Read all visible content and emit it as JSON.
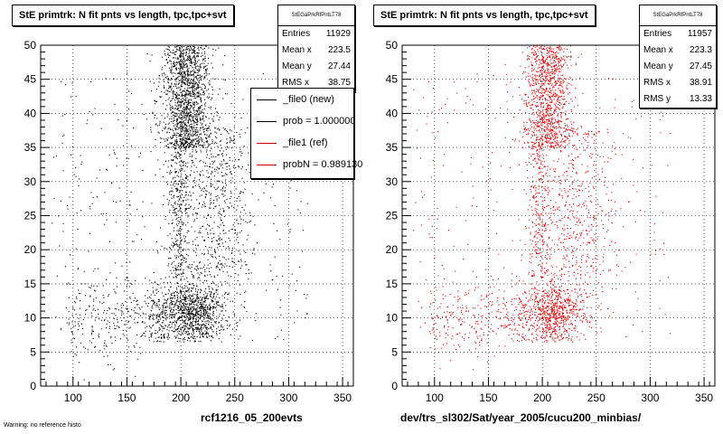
{
  "panels": [
    {
      "title": "StE primtrk: N fit pnts vs length, tpc,tpc+svt",
      "file_label": "rcf1216_05_200evts",
      "stats": {
        "name": "StEGaPrkRfPntLT78",
        "rows": [
          {
            "label": "Entries",
            "value": "11929"
          },
          {
            "label": "Mean x",
            "value": "223.5"
          },
          {
            "label": "Mean y",
            "value": "27.44"
          },
          {
            "label": "RMS x",
            "value": "38.75"
          }
        ]
      },
      "legend": [
        {
          "label": "_file0 (new)",
          "color": "#000000"
        },
        {
          "label": "prob = 1.000000",
          "color": "#000000"
        },
        {
          "label": "_file1 (ref)",
          "color": "#cc0000"
        },
        {
          "label": "probN = 0.989130",
          "color": "#cc0000"
        }
      ],
      "point_color": "#000000"
    },
    {
      "title": "StE primtrk: N fit pnts vs length, tpc,tpc+svt",
      "file_label": "dev/trs_sl302/Sat/year_2005/cucu200_minbias/",
      "stats": {
        "name": "StEGaPrkRfPntLT78",
        "rows": [
          {
            "label": "Entries",
            "value": "11957"
          },
          {
            "label": "Mean x",
            "value": "223.3"
          },
          {
            "label": "Mean y",
            "value": "27.45"
          },
          {
            "label": "RMS x",
            "value": "38.91"
          },
          {
            "label": "RMS y",
            "value": "13.33"
          }
        ]
      },
      "point_color": "#e00000"
    }
  ],
  "footer_note": "Warning: no reference histo",
  "chart_data": [
    {
      "type": "scatter",
      "title": "StE primtrk: N fit pnts vs length, tpc,tpc+svt",
      "xlabel": "rcf1216_05_200evts",
      "ylabel": "",
      "xlim": [
        70,
        360
      ],
      "ylim": [
        0,
        50
      ],
      "x_ticks": [
        100,
        150,
        200,
        250,
        300,
        350
      ],
      "y_ticks": [
        0,
        5,
        10,
        15,
        20,
        25,
        30,
        35,
        40,
        45,
        50
      ],
      "grid": true,
      "series": [
        {
          "name": "_file0 (new)",
          "entries": 11929,
          "mean_x": 223.5,
          "mean_y": 27.44,
          "rms_x": 38.75
        }
      ]
    },
    {
      "type": "scatter",
      "title": "StE primtrk: N fit pnts vs length, tpc,tpc+svt",
      "xlabel": "dev/trs_sl302/Sat/year_2005/cucu200_minbias/",
      "ylabel": "",
      "xlim": [
        70,
        360
      ],
      "ylim": [
        0,
        50
      ],
      "x_ticks": [
        100,
        150,
        200,
        250,
        300,
        350
      ],
      "y_ticks": [
        0,
        5,
        10,
        15,
        20,
        25,
        30,
        35,
        40,
        45,
        50
      ],
      "grid": true,
      "series": [
        {
          "name": "_file1 (ref)",
          "entries": 11957,
          "mean_x": 223.3,
          "mean_y": 27.45,
          "rms_x": 38.91,
          "rms_y": 13.33
        }
      ]
    }
  ]
}
